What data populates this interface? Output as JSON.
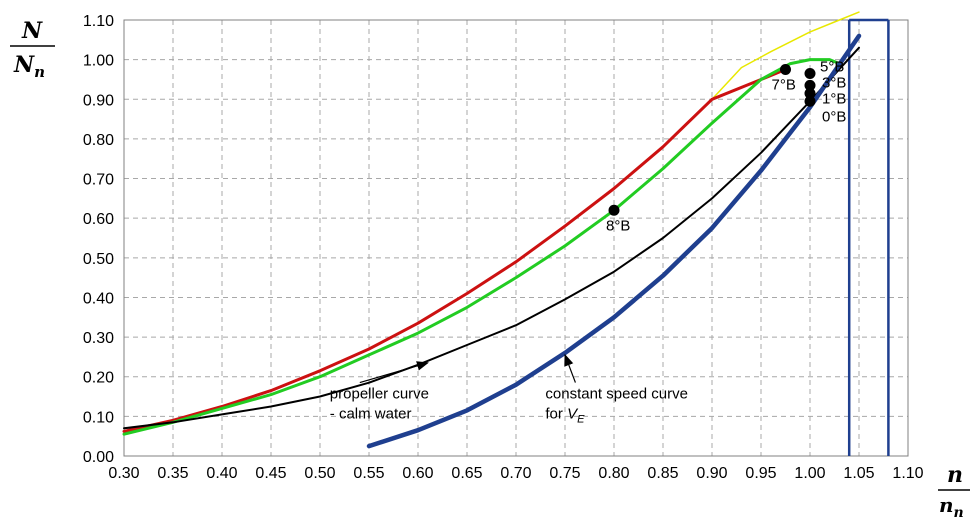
{
  "chart_data": {
    "type": "line",
    "title": "",
    "xlabel": {
      "num": "n",
      "den": "n",
      "den_sub": "n"
    },
    "ylabel": {
      "num": "N",
      "den": "N",
      "den_sub": "n"
    },
    "xlim": [
      0.3,
      1.1
    ],
    "ylim": [
      0.0,
      1.1
    ],
    "grid": true,
    "x_ticks": [
      "0.30",
      "0.35",
      "0.40",
      "0.45",
      "0.50",
      "0.55",
      "0.60",
      "0.65",
      "0.70",
      "0.75",
      "0.80",
      "0.85",
      "0.90",
      "0.95",
      "1.00",
      "1.05",
      "1.10"
    ],
    "y_ticks": [
      "0.00",
      "0.10",
      "0.20",
      "0.30",
      "0.40",
      "0.50",
      "0.60",
      "0.70",
      "0.80",
      "0.90",
      "1.00",
      "1.10"
    ],
    "series": [
      {
        "color": "#e8e800",
        "width": 1.5,
        "x": [
          0.9,
          0.93,
          0.96,
          1.0,
          1.03,
          1.05
        ],
        "y": [
          0.9,
          0.98,
          1.02,
          1.07,
          1.1,
          1.12
        ]
      },
      {
        "color": "#cc1111",
        "width": 3,
        "x": [
          0.3,
          0.35,
          0.4,
          0.45,
          0.5,
          0.55,
          0.6,
          0.65,
          0.7,
          0.75,
          0.8,
          0.85,
          0.9,
          0.95,
          0.975
        ],
        "y": [
          0.062,
          0.09,
          0.125,
          0.165,
          0.215,
          0.27,
          0.335,
          0.41,
          0.49,
          0.58,
          0.675,
          0.78,
          0.9,
          0.95,
          0.975
        ]
      },
      {
        "color": "#22cc22",
        "width": 3,
        "x": [
          0.3,
          0.35,
          0.4,
          0.45,
          0.5,
          0.55,
          0.6,
          0.65,
          0.7,
          0.75,
          0.8,
          0.85,
          0.9,
          0.95,
          0.98,
          1.0,
          1.02,
          1.03
        ],
        "y": [
          0.055,
          0.085,
          0.12,
          0.155,
          0.2,
          0.255,
          0.31,
          0.375,
          0.45,
          0.53,
          0.62,
          0.725,
          0.84,
          0.95,
          0.99,
          1.0,
          1.0,
          0.99
        ]
      },
      {
        "color": "#000000",
        "width": 2,
        "x": [
          0.3,
          0.35,
          0.4,
          0.45,
          0.5,
          0.55,
          0.6,
          0.65,
          0.7,
          0.75,
          0.8,
          0.85,
          0.9,
          0.95,
          1.0,
          1.05
        ],
        "y": [
          0.07,
          0.085,
          0.105,
          0.125,
          0.15,
          0.185,
          0.23,
          0.28,
          0.33,
          0.395,
          0.465,
          0.55,
          0.65,
          0.765,
          0.895,
          1.03
        ]
      },
      {
        "color": "#1f3f8f",
        "width": 4.5,
        "x": [
          0.55,
          0.6,
          0.65,
          0.7,
          0.75,
          0.8,
          0.85,
          0.9,
          0.95,
          1.0,
          1.05
        ],
        "y": [
          0.025,
          0.065,
          0.115,
          0.18,
          0.26,
          0.35,
          0.455,
          0.575,
          0.72,
          0.88,
          1.06
        ]
      }
    ],
    "vertical_lines": [
      {
        "x": 1.04,
        "color": "#1f3f8f"
      },
      {
        "x": 1.08,
        "color": "#1f3f8f"
      }
    ],
    "points": [
      {
        "x": 0.8,
        "y": 0.62,
        "label": "8°B"
      },
      {
        "x": 0.975,
        "y": 0.975,
        "label": "7°B"
      },
      {
        "x": 1.0,
        "y": 0.965,
        "label": "5°B"
      },
      {
        "x": 1.0,
        "y": 0.935,
        "label": "3°B"
      },
      {
        "x": 1.0,
        "y": 0.915,
        "label": "1°B"
      },
      {
        "x": 1.0,
        "y": 0.895,
        "label": "0°B"
      }
    ],
    "annotations": [
      {
        "lines": [
          "propeller curve",
          "- calm water"
        ],
        "text_x": 0.51,
        "text_y": 0.145,
        "arrow_to": [
          0.61,
          0.235
        ]
      },
      {
        "lines": [
          "constant speed curve",
          "for V_E"
        ],
        "text_x": 0.73,
        "text_y": 0.145,
        "arrow_to": [
          0.75,
          0.255
        ]
      }
    ]
  }
}
